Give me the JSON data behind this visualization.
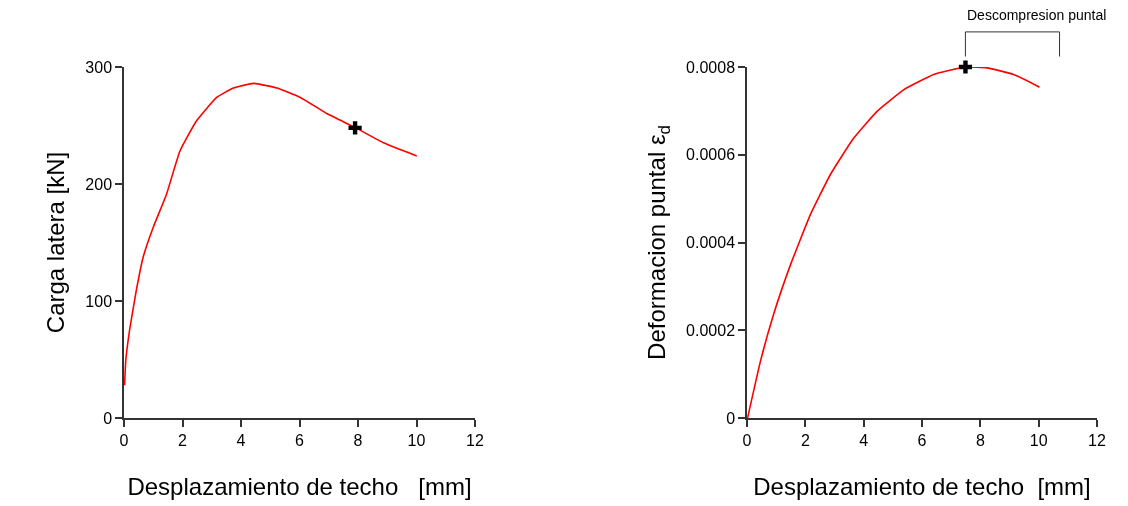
{
  "chart_data": [
    {
      "type": "line",
      "xlabel": "Desplazamiento de techo   [mm]",
      "ylabel": "Carga latera [kN]",
      "xlim": [
        0,
        12
      ],
      "ylim": [
        0,
        300
      ],
      "xticks": [
        0,
        2,
        4,
        6,
        8,
        10,
        12
      ],
      "yticks": [
        0,
        100,
        200,
        300
      ],
      "grid": false,
      "series": [
        {
          "color": "#ff0000",
          "marker": "none",
          "x": [
            0.02,
            0.06,
            0.19,
            0.42,
            0.65,
            1.0,
            1.45,
            1.91,
            2.48,
            3.17,
            3.74,
            4.43,
            5.23,
            6.03,
            6.95,
            7.92,
            8.89,
            10.01
          ],
          "values": [
            28,
            49,
            75,
            109,
            137,
            163,
            191,
            228,
            254,
            274,
            282,
            286,
            282,
            274,
            260,
            248,
            235,
            224
          ]
        },
        {
          "type": "scatter",
          "color": "#000000",
          "marker": "cross",
          "x": [
            7.9
          ],
          "values": [
            248
          ]
        }
      ]
    },
    {
      "type": "line",
      "xlabel": "Desplazamiento de techo  [mm]",
      "ylabel": "Deformacion puntal ε$_{d}$",
      "xlim": [
        0,
        12
      ],
      "ylim": [
        0,
        0.0008
      ],
      "xticks": [
        0,
        2,
        4,
        6,
        8,
        10,
        12
      ],
      "yticks": [
        0,
        0.0002,
        0.0004,
        0.0006,
        0.0008
      ],
      "grid": false,
      "annotations": [
        "Descompresion puntal"
      ],
      "series": [
        {
          "color": "#ff0000",
          "marker": "none",
          "x": [
            0.02,
            0.46,
            0.91,
            1.49,
            2.17,
            2.86,
            3.66,
            4.46,
            5.37,
            6.4,
            7.49,
            8.23,
            9.14,
            10.03
          ],
          "values": [
            0,
            0.000129,
            0.000236,
            0.000349,
            0.000463,
            0.000555,
            0.000638,
            0.000699,
            0.000748,
            0.000783,
            0.0008,
            0.000798,
            0.000783,
            0.000754
          ]
        },
        {
          "type": "scatter",
          "color": "#000000",
          "marker": "cross",
          "x": [
            7.49
          ],
          "values": [
            0.0008
          ]
        }
      ]
    }
  ]
}
